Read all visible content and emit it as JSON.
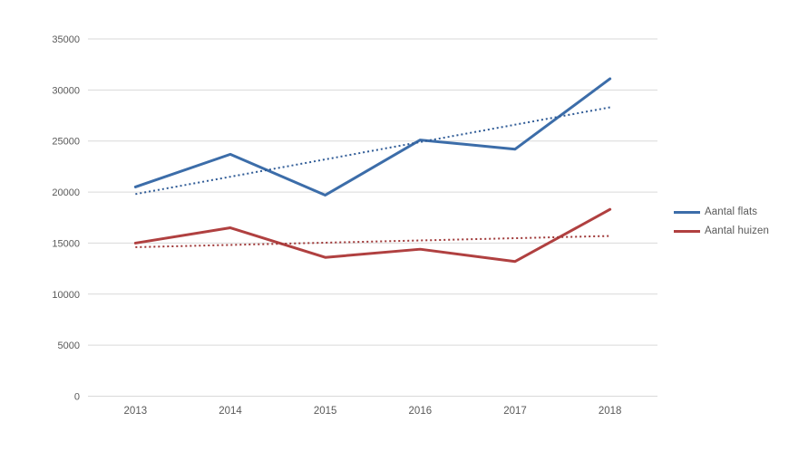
{
  "chart_data": {
    "type": "line",
    "title": "",
    "xlabel": "",
    "ylabel": "",
    "categories": [
      "2013",
      "2014",
      "2015",
      "2016",
      "2017",
      "2018"
    ],
    "series": [
      {
        "name": "Aantal flats",
        "color": "#3C6DA9",
        "values": [
          20500,
          23700,
          19700,
          25100,
          24200,
          31100
        ],
        "trend": {
          "start": 19800,
          "end": 28300,
          "color": "#2F5B96",
          "style": "dotted"
        }
      },
      {
        "name": "Aantal huizen",
        "color": "#B04040",
        "values": [
          15000,
          16500,
          13600,
          14400,
          13200,
          18300
        ],
        "trend": {
          "start": 14600,
          "end": 15700,
          "color": "#9E3636",
          "style": "dotted"
        }
      }
    ],
    "ylim": [
      0,
      35000
    ],
    "ytick_step": 5000,
    "yticks": [
      "0",
      "5000",
      "10000",
      "15000",
      "20000",
      "25000",
      "30000",
      "35000"
    ],
    "grid": "horizontal-only",
    "gridline_color": "#D9D9D9",
    "axis_label_color": "#595959",
    "legend_position": "right"
  }
}
